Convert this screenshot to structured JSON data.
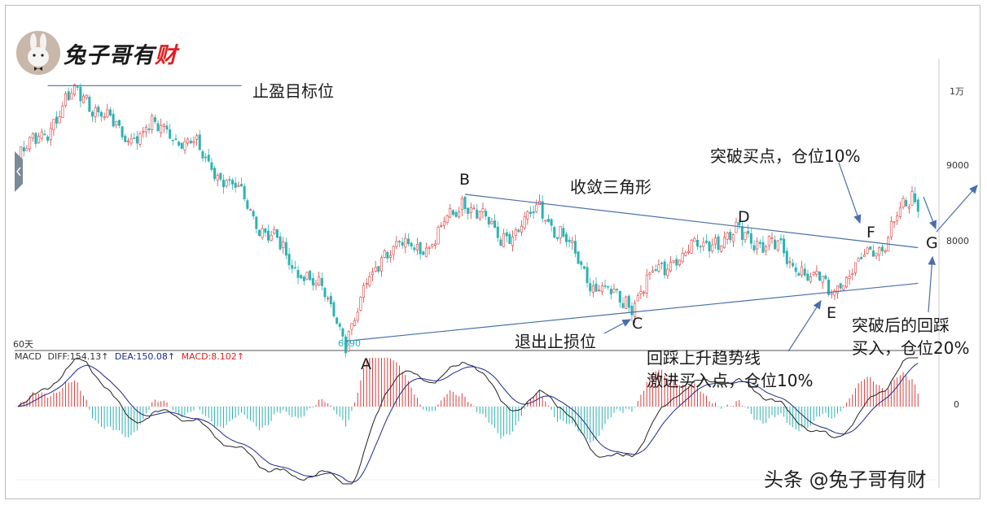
{
  "brand": {
    "name_part1": "兔子哥有",
    "name_part2": "财",
    "watermark": "头条 @兔子哥有财"
  },
  "annotations": {
    "take_profit": "止盈目标位",
    "triangle": "收敛三角形",
    "breakout_buy": "突破买点，仓位10%",
    "exit_stop": "退出止损位",
    "pullback_line1": "回踩上升趋势线",
    "pullback_line2": "激进买入点，仓位10%",
    "retest_line1": "突破后的回踩",
    "retest_line2": "买入，仓位20%"
  },
  "points": {
    "A": "A",
    "B": "B",
    "C": "C",
    "D": "D",
    "E": "E",
    "F": "F",
    "G": "G"
  },
  "price_axis": {
    "ticks": [
      "1万",
      "9000",
      "8000"
    ]
  },
  "macd_axis": {
    "ticks": [
      "0"
    ]
  },
  "period_label": "60天",
  "low_value_label": "6690",
  "macd_legend": {
    "name": "MACD",
    "diff": "DIFF:154.13↑",
    "dea": "DEA:150.08↑",
    "macd": "MACD:8.102↑"
  },
  "colors": {
    "up": "#e03c3c",
    "down": "#2bb3b3",
    "line": "#4a6fa8",
    "diff": "#222222",
    "dea": "#1a2a8a"
  },
  "chart_data": [
    {
      "type": "candlestick",
      "title": "",
      "ylim": [
        6500,
        10400
      ],
      "y_ticks": [
        10000,
        9000,
        8000
      ],
      "anchors": [
        {
          "i": 0,
          "v": 9100
        },
        {
          "i": 10,
          "v": 9500
        },
        {
          "i": 20,
          "v": 10000
        },
        {
          "i": 35,
          "v": 9400
        },
        {
          "i": 50,
          "v": 9500
        },
        {
          "i": 63,
          "v": 9100
        },
        {
          "i": 72,
          "v": 8700
        },
        {
          "i": 90,
          "v": 7800
        },
        {
          "i": 105,
          "v": 7200
        },
        {
          "i": 110,
          "v": 6690
        },
        {
          "i": 122,
          "v": 7900
        },
        {
          "i": 140,
          "v": 8000
        },
        {
          "i": 150,
          "v": 8600
        },
        {
          "i": 160,
          "v": 8100
        },
        {
          "i": 168,
          "v": 8100
        },
        {
          "i": 175,
          "v": 8450
        },
        {
          "i": 185,
          "v": 7900
        },
        {
          "i": 194,
          "v": 7400
        },
        {
          "i": 205,
          "v": 7200
        },
        {
          "i": 220,
          "v": 7800
        },
        {
          "i": 235,
          "v": 8050
        },
        {
          "i": 245,
          "v": 8100
        },
        {
          "i": 258,
          "v": 7800
        },
        {
          "i": 272,
          "v": 7350
        },
        {
          "i": 280,
          "v": 7600
        },
        {
          "i": 290,
          "v": 8000
        },
        {
          "i": 300,
          "v": 8550
        }
      ],
      "lines": [
        {
          "name": "take_profit",
          "from": {
            "i": 10,
            "v": 10050
          },
          "to": {
            "i": 75,
            "v": 10050
          }
        },
        {
          "name": "upper_trendline",
          "from": {
            "i": 150,
            "v": 8620
          },
          "to": {
            "i": 302,
            "v": 7920
          }
        },
        {
          "name": "lower_trendline",
          "from": {
            "i": 110,
            "v": 6690
          },
          "to": {
            "i": 302,
            "v": 7450
          }
        }
      ]
    },
    {
      "type": "macd",
      "title": "",
      "series": [
        {
          "name": "DIFF",
          "last": 154.13
        },
        {
          "name": "DEA",
          "last": 150.08
        },
        {
          "name": "MACD",
          "last": 8.102
        }
      ]
    }
  ]
}
